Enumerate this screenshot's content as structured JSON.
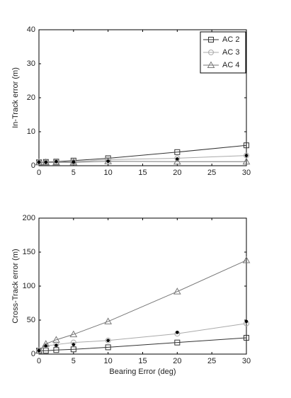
{
  "chart_data": [
    {
      "type": "line",
      "ylabel": "In-Track error (m)",
      "x": [
        0,
        1,
        2.5,
        5,
        10,
        20,
        30
      ],
      "xlim": [
        0,
        30
      ],
      "xticks": [
        0,
        5,
        10,
        15,
        20,
        25,
        30
      ],
      "ylim": [
        0,
        40
      ],
      "yticks": [
        0,
        10,
        20,
        30,
        40
      ],
      "legend": "upper-right",
      "series": [
        {
          "name": "AC 2",
          "color": "#333333",
          "marker": "square",
          "values": [
            1,
            1.1,
            1.2,
            1.5,
            2.2,
            4,
            6
          ]
        },
        {
          "name": "AC 3",
          "color": "#aaaaaa",
          "marker": "circle",
          "values": [
            1,
            1,
            1.1,
            1.2,
            1.8,
            2.2,
            3
          ]
        },
        {
          "name": "AC 4",
          "color": "#777777",
          "marker": "triangle",
          "values": [
            1,
            1,
            1,
            1,
            1.3,
            1.2,
            1.2
          ]
        },
        {
          "color": "#000000",
          "marker": "dot",
          "values": [
            1,
            1,
            1.2,
            1.1,
            1.3,
            2,
            3
          ]
        }
      ]
    },
    {
      "type": "line",
      "ylabel": "Cross-Track error (m)",
      "xlabel": "Bearing Error (deg)",
      "x": [
        0,
        1,
        2.5,
        5,
        10,
        20,
        30
      ],
      "xlim": [
        0,
        30
      ],
      "xticks": [
        0,
        5,
        10,
        15,
        20,
        25,
        30
      ],
      "ylim": [
        0,
        200
      ],
      "yticks": [
        0,
        50,
        100,
        150,
        200
      ],
      "series": [
        {
          "name": "AC 2",
          "color": "#333333",
          "marker": "square",
          "values": [
            5,
            5,
            6,
            7,
            10,
            17,
            24
          ]
        },
        {
          "name": "AC 3",
          "color": "#aaaaaa",
          "marker": "circle",
          "values": [
            5,
            12,
            14,
            17,
            20,
            30,
            45
          ]
        },
        {
          "name": "AC 4",
          "color": "#777777",
          "marker": "triangle",
          "values": [
            5,
            15,
            21,
            29,
            48,
            92,
            138
          ]
        },
        {
          "color": "#000000",
          "marker": "dot",
          "values": [
            5,
            12,
            13,
            14,
            20,
            32,
            48
          ]
        }
      ]
    }
  ]
}
